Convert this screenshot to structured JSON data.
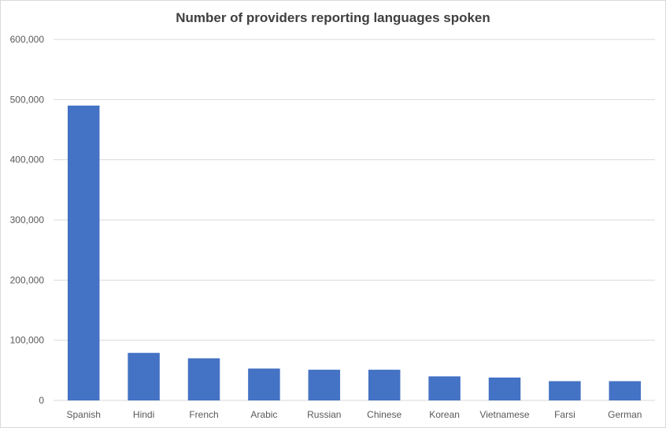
{
  "chart_data": {
    "type": "bar",
    "title": "Number of providers reporting languages spoken",
    "categories": [
      "Spanish",
      "Hindi",
      "French",
      "Arabic",
      "Russian",
      "Chinese",
      "Korean",
      "Vietnamese",
      "Farsi",
      "German"
    ],
    "values": [
      490000,
      79000,
      70000,
      53000,
      51000,
      51000,
      40000,
      38000,
      32000,
      32000
    ],
    "ylim": [
      0,
      600000
    ],
    "yticks": [
      "0",
      "100,000",
      "200,000",
      "300,000",
      "400,000",
      "500,000",
      "600,000"
    ],
    "ytick_values": [
      0,
      100000,
      200000,
      300000,
      400000,
      500000,
      600000
    ],
    "grid": true,
    "legend": "none",
    "bar_color": "#4472C4"
  }
}
